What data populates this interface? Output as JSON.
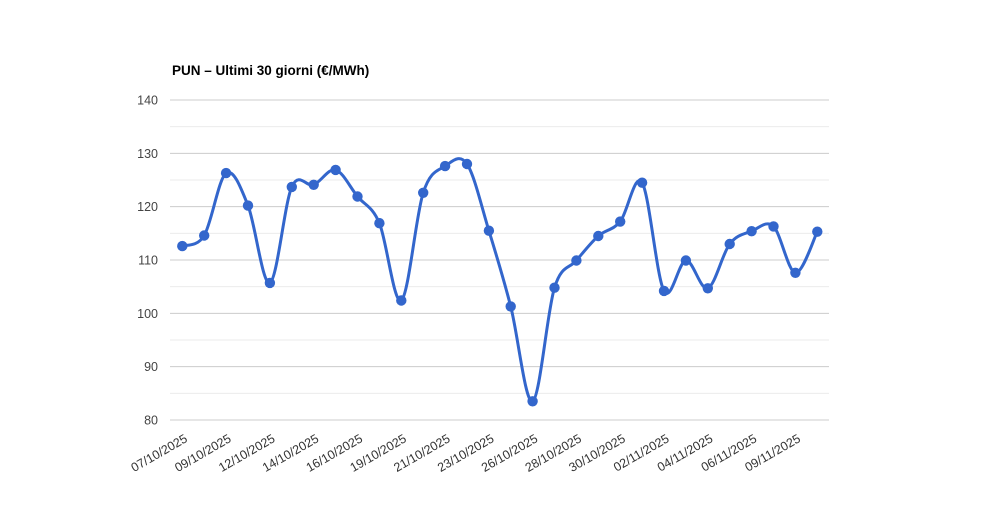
{
  "page": {
    "background_color": "#ffffff"
  },
  "chart_data": {
    "type": "line",
    "title": "PUN – Ultimi 30 giorni (€/MWh)",
    "unit": "€/MWh",
    "smooth_curve": true,
    "grid": true,
    "legend_position": "none",
    "line_color": "#3366CC",
    "marker_color": "#3366CC",
    "gridline_major_color": "#cccccc",
    "gridline_minor_color": "#ebebeb",
    "axis_text_color": "#444444",
    "ylim": [
      80,
      140
    ],
    "y_ticks": [
      80,
      90,
      100,
      110,
      120,
      130,
      140
    ],
    "y_minor_step": 5,
    "x_tick_every": 2,
    "x_tick_labels": [
      "07/10/2025",
      "09/10/2025",
      "12/10/2025",
      "14/10/2025",
      "16/10/2025",
      "19/10/2025",
      "21/10/2025",
      "23/10/2025",
      "26/10/2025",
      "28/10/2025",
      "30/10/2025",
      "02/11/2025",
      "04/11/2025",
      "06/11/2025",
      "09/11/2025"
    ],
    "x_label_rotation_deg": -30,
    "series": [
      {
        "name": "PUN",
        "values": [
          112.6,
          114.6,
          126.3,
          120.2,
          105.7,
          123.7,
          124.1,
          126.9,
          121.9,
          116.9,
          102.4,
          122.6,
          127.6,
          128.0,
          115.5,
          101.3,
          83.5,
          104.8,
          109.9,
          114.5,
          117.2,
          124.5,
          104.2,
          109.9,
          104.7,
          113.0,
          115.4,
          116.3,
          107.6,
          115.3
        ]
      }
    ]
  }
}
